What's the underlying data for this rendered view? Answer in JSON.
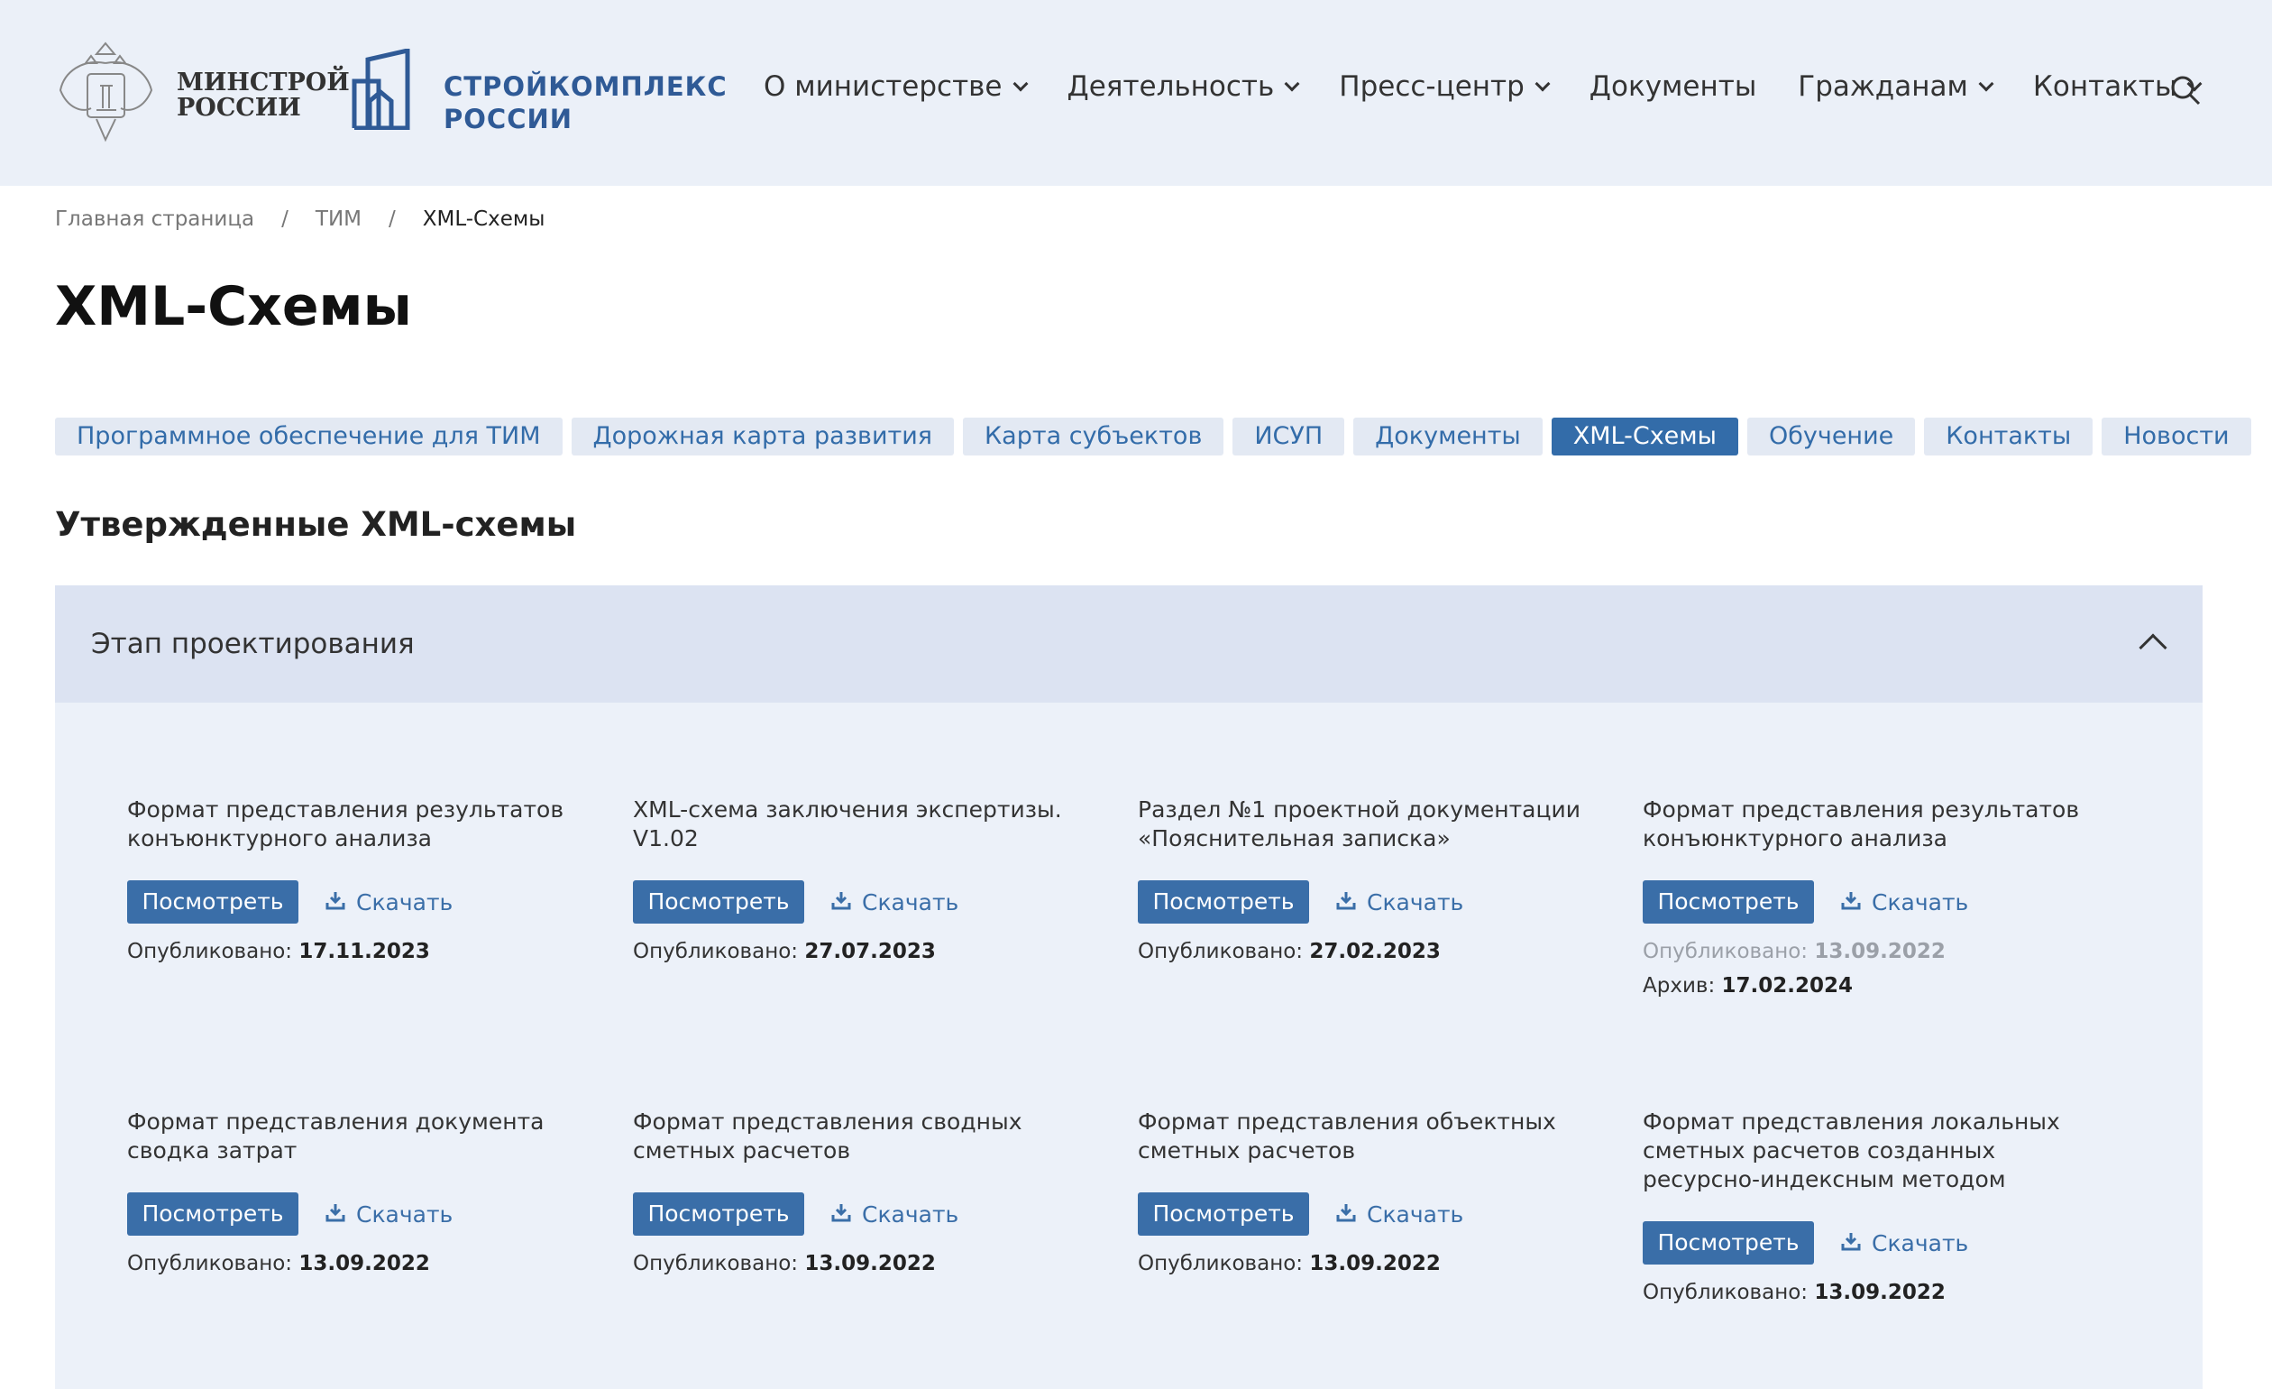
{
  "header": {
    "logo_ministry": [
      "МИНСТРОЙ",
      "РОССИИ"
    ],
    "logo_project": [
      "СТРОЙКОМПЛЕКС",
      "РОССИИ"
    ],
    "nav": [
      {
        "label": "О министерстве",
        "dropdown": true
      },
      {
        "label": "Деятельность",
        "dropdown": true
      },
      {
        "label": "Пресс-центр",
        "dropdown": true
      },
      {
        "label": "Документы",
        "dropdown": false
      },
      {
        "label": "Гражданам",
        "dropdown": true
      },
      {
        "label": "Контакты",
        "dropdown": true
      }
    ],
    "search_icon": "search-icon"
  },
  "breadcrumb": [
    "Главная страница",
    "/",
    "ТИМ",
    "/",
    "XML-Схемы"
  ],
  "title": "XML-Схемы",
  "tabs": [
    "Программное обеспечение для ТИМ",
    "Дорожная карта развития",
    "Карта субъектов",
    "ИСУП",
    "Документы",
    "XML-Схемы",
    "Обучение",
    "Контакты",
    "Новости"
  ],
  "active_tab": "XML-Схемы",
  "section_title": "Утвержденные XML-схемы",
  "accordion": {
    "title": "Этап проектирования",
    "expanded": true
  },
  "labels": {
    "view": "Посмотреть",
    "download": "Скачать",
    "published": "Опубликовано:",
    "archive": "Архив:"
  },
  "cards": [
    {
      "title": "Формат представления результатов конъюнктурного анализа",
      "published": "17.11.2023"
    },
    {
      "title": "XML-схема заключения экспертизы. V1.02",
      "published": "27.07.2023"
    },
    {
      "title": "Раздел №1 проектной документации «Пояснительная записка»",
      "published": "27.02.2023"
    },
    {
      "title": "Формат представления результатов конъюнктурного анализа",
      "published": "13.09.2022",
      "archive": "17.02.2024"
    },
    {
      "title": "Формат представления документа сводка затрат",
      "published": "13.09.2022"
    },
    {
      "title": "Формат представления сводных сметных расчетов",
      "published": "13.09.2022"
    },
    {
      "title": "Формат представления объектных сметных расчетов",
      "published": "13.09.2022"
    },
    {
      "title": "Формат представления локальных сметных расчетов созданных ресурсно-индексным методом",
      "published": "13.09.2022"
    }
  ],
  "colors": {
    "accent": "#3a6ea8",
    "header_bg": "#ebf0f8",
    "accordion_bg": "#dce3f2",
    "body_bg": "#ecf1f9"
  }
}
